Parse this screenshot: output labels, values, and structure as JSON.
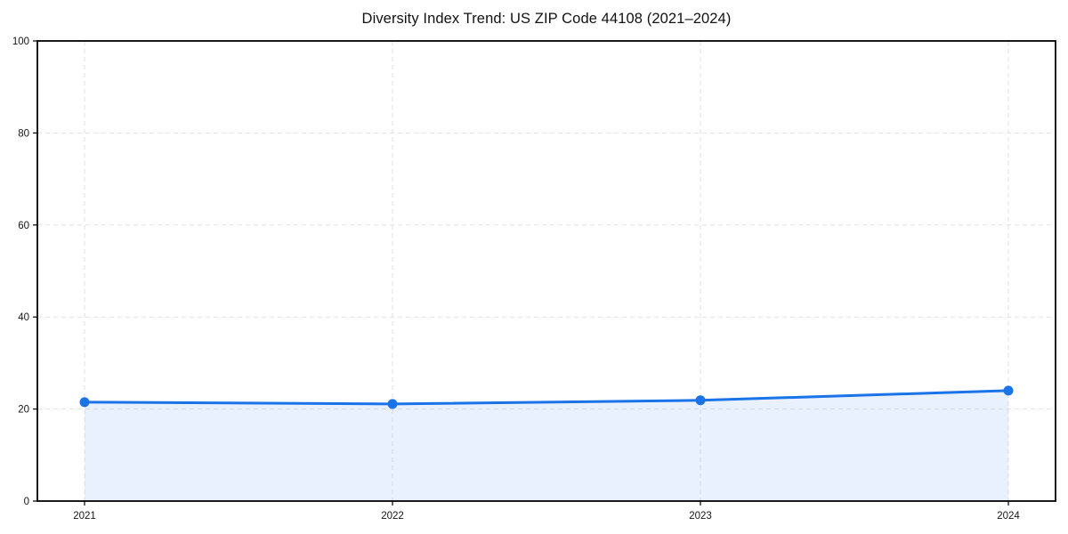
{
  "chart_data": {
    "type": "line",
    "title": "Diversity Index Trend: US ZIP Code 44108 (2021–2024)",
    "categories": [
      "2021",
      "2022",
      "2023",
      "2024"
    ],
    "series": [
      {
        "name": "Diversity Index",
        "values": [
          21.5,
          21.1,
          21.9,
          24.0
        ]
      }
    ],
    "xlabel": "",
    "ylabel": "",
    "ylim": [
      0,
      100
    ],
    "yticks": [
      0,
      20,
      40,
      60,
      80,
      100
    ],
    "grid": true,
    "grid_style": "dashed",
    "legend_position": "none",
    "area_fill": true,
    "colors": {
      "line": "#1a73e8",
      "marker": "#1a73e8",
      "fill": "#1a73e8",
      "fill_opacity": 0.1,
      "grid": "#e2e2e2",
      "axis": "#000000",
      "text": "#161616",
      "background": "#ffffff"
    }
  }
}
